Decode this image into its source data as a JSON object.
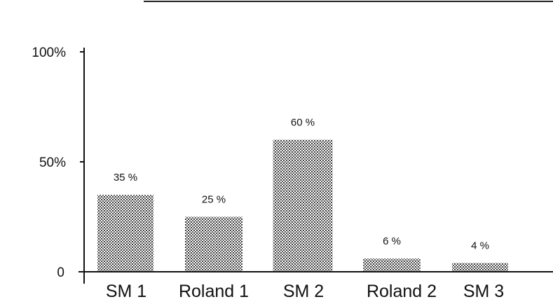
{
  "chart_data": {
    "type": "bar",
    "categories": [
      "SM 1",
      "Roland 1",
      "SM 2",
      "Roland 2",
      "SM 3"
    ],
    "values": [
      35,
      25,
      60,
      6,
      4
    ],
    "data_labels": [
      "35 %",
      "25 %",
      "60 %",
      "6 %",
      "4 %"
    ],
    "y_tick_values": [
      0,
      50,
      100
    ],
    "y_tick_labels": [
      "0",
      "50%",
      "100%"
    ],
    "ylim": [
      0,
      100
    ],
    "grid": false,
    "bar_fill": "stipple-gray"
  }
}
